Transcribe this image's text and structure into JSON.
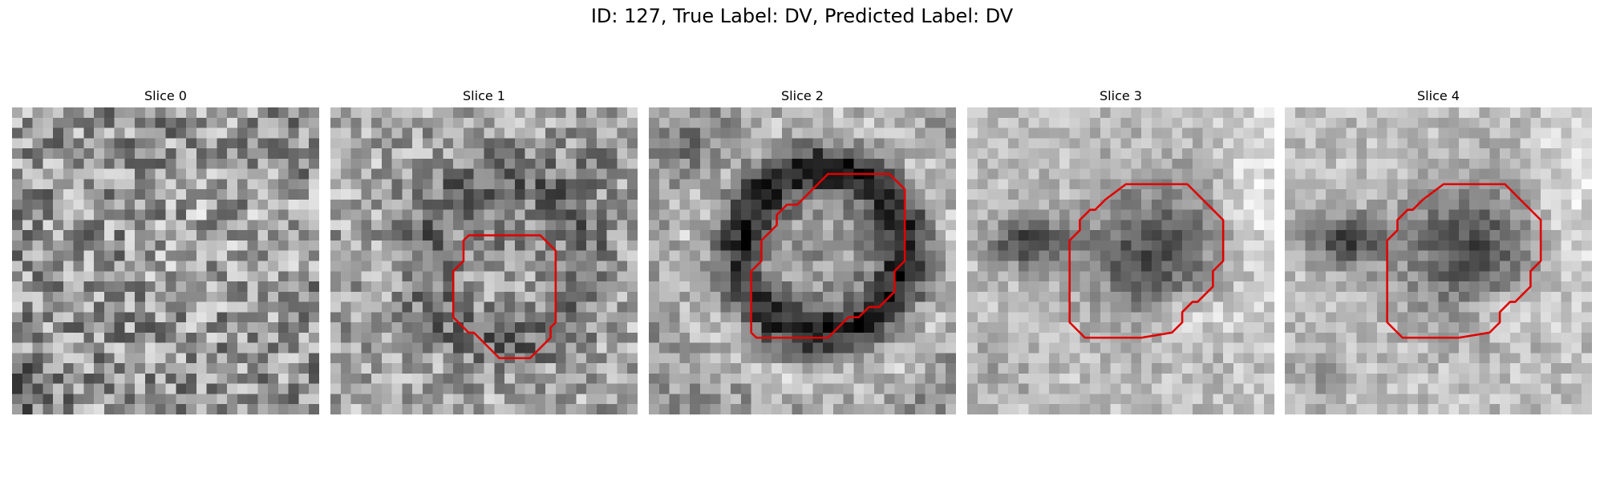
{
  "figure": {
    "title": "ID: 127, True Label: DV, Predicted Label: DV",
    "contour_color": "#e00000"
  },
  "slices": [
    {
      "title": "Slice 0",
      "image": "noise-texture-no-structure",
      "contour": null
    },
    {
      "title": "Slice 1",
      "image": "faint-dark-ring-structure",
      "contour": [
        [
          14.5,
          12.5
        ],
        [
          20.5,
          12.5
        ],
        [
          22,
          14
        ],
        [
          22,
          21
        ],
        [
          21.5,
          21.5
        ],
        [
          21.5,
          22.5
        ],
        [
          19.5,
          24.5
        ],
        [
          16.5,
          24.5
        ],
        [
          14,
          22
        ],
        [
          13.5,
          22
        ],
        [
          12,
          20.5
        ],
        [
          12,
          16
        ],
        [
          13,
          15
        ],
        [
          13,
          13
        ],
        [
          13.5,
          12.5
        ]
      ]
    },
    {
      "title": "Slice 2",
      "image": "dark-ring-bright-center",
      "contour": [
        [
          17.5,
          6.5
        ],
        [
          23.5,
          6.5
        ],
        [
          25,
          8
        ],
        [
          25,
          15
        ],
        [
          24,
          16
        ],
        [
          24,
          18
        ],
        [
          22.5,
          19.5
        ],
        [
          21.5,
          19.5
        ],
        [
          20.5,
          20.5
        ],
        [
          19.5,
          20.5
        ],
        [
          17.5,
          22.5
        ],
        [
          10.5,
          22.5
        ],
        [
          10,
          22
        ],
        [
          10,
          16
        ],
        [
          11,
          15
        ],
        [
          11,
          13
        ],
        [
          12.5,
          11.5
        ],
        [
          12.5,
          10.5
        ],
        [
          13.5,
          9.5
        ],
        [
          14.5,
          9.5
        ],
        [
          17.5,
          6.5
        ]
      ]
    },
    {
      "title": "Slice 3",
      "image": "dark-blob-left-extension",
      "contour": [
        [
          15.5,
          7.5
        ],
        [
          21.5,
          7.5
        ],
        [
          24.5,
          10.5
        ],
        [
          25,
          11
        ],
        [
          25,
          15
        ],
        [
          24,
          16
        ],
        [
          24,
          17.5
        ],
        [
          22.5,
          19
        ],
        [
          22,
          19
        ],
        [
          21.5,
          19.5
        ],
        [
          21,
          20
        ],
        [
          21,
          21
        ],
        [
          20,
          22
        ],
        [
          17,
          22.5
        ],
        [
          11.5,
          22.5
        ],
        [
          10.5,
          21.5
        ],
        [
          10,
          21
        ],
        [
          10,
          13
        ],
        [
          11,
          12
        ],
        [
          11,
          11
        ],
        [
          12,
          10
        ],
        [
          12.5,
          10
        ],
        [
          13.5,
          9
        ],
        [
          15.5,
          7.5
        ]
      ]
    },
    {
      "title": "Slice 4",
      "image": "dark-blob-left-extension",
      "contour": [
        [
          15.5,
          7.5
        ],
        [
          21.5,
          7.5
        ],
        [
          24.5,
          10.5
        ],
        [
          25,
          11
        ],
        [
          25,
          15
        ],
        [
          24,
          16
        ],
        [
          24,
          17.5
        ],
        [
          22.5,
          19
        ],
        [
          22,
          19
        ],
        [
          21.5,
          19.5
        ],
        [
          21,
          20
        ],
        [
          21,
          21
        ],
        [
          20,
          22
        ],
        [
          17,
          22.5
        ],
        [
          11.5,
          22.5
        ],
        [
          10.5,
          21.5
        ],
        [
          10,
          21
        ],
        [
          10,
          13
        ],
        [
          11,
          12
        ],
        [
          11,
          11
        ],
        [
          12,
          10
        ],
        [
          12.5,
          10
        ],
        [
          13.5,
          9
        ],
        [
          15.5,
          7.5
        ]
      ]
    }
  ]
}
